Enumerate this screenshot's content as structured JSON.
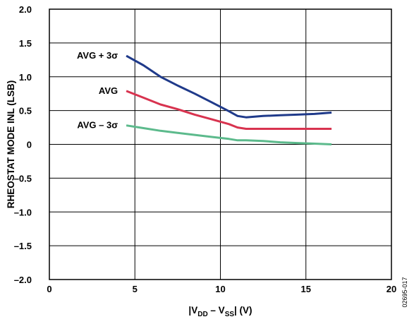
{
  "chart_data": {
    "type": "line",
    "title": "",
    "xlabel": "|VDD – VSS| (V)",
    "xlabel_parts": {
      "open": "|V",
      "sub1": "DD",
      "mid": " – V",
      "sub2": "SS",
      "close": "| (V)"
    },
    "ylabel": "RHEOSTAT MODE INL (LSB)",
    "xlim": [
      0,
      20
    ],
    "ylim": [
      -2.0,
      2.0
    ],
    "x_ticks": [
      0,
      5,
      10,
      15,
      20
    ],
    "x_tick_labels": [
      "0",
      "5",
      "10",
      "15",
      "20"
    ],
    "y_ticks": [
      -2.0,
      -1.5,
      -1.0,
      -0.5,
      0,
      0.5,
      1.0,
      1.5,
      2.0
    ],
    "y_tick_labels": [
      "–2.0",
      "–1.5",
      "–1.0",
      "–0.5",
      "0",
      "0.5",
      "1.0",
      "1.5",
      "2.0"
    ],
    "grid": true,
    "series": [
      {
        "name": "AVG + 3σ",
        "color": "#1f3a8a",
        "x": [
          4.5,
          5.5,
          6.5,
          7.5,
          8.5,
          9.5,
          10.5,
          11.0,
          11.5,
          12.5,
          13.5,
          14.5,
          15.5,
          16.5
        ],
        "y": [
          1.31,
          1.17,
          1.0,
          0.87,
          0.75,
          0.62,
          0.49,
          0.42,
          0.4,
          0.42,
          0.43,
          0.44,
          0.45,
          0.47
        ]
      },
      {
        "name": "AVG",
        "color": "#d8334f",
        "x": [
          4.5,
          5.5,
          6.5,
          7.5,
          8.5,
          9.5,
          10.5,
          11.0,
          11.5,
          12.5,
          13.5,
          14.5,
          15.5,
          16.5
        ],
        "y": [
          0.79,
          0.69,
          0.59,
          0.52,
          0.44,
          0.37,
          0.3,
          0.25,
          0.23,
          0.23,
          0.23,
          0.23,
          0.23,
          0.23
        ]
      },
      {
        "name": "AVG – 3σ",
        "color": "#5cba8c",
        "x": [
          4.5,
          5.5,
          6.5,
          7.5,
          8.5,
          9.5,
          10.5,
          11.0,
          11.5,
          12.5,
          13.5,
          14.5,
          15.5,
          16.5
        ],
        "y": [
          0.28,
          0.24,
          0.2,
          0.17,
          0.14,
          0.11,
          0.08,
          0.06,
          0.06,
          0.05,
          0.03,
          0.02,
          0.01,
          0.0
        ]
      }
    ],
    "figure_code": "02695-017"
  }
}
